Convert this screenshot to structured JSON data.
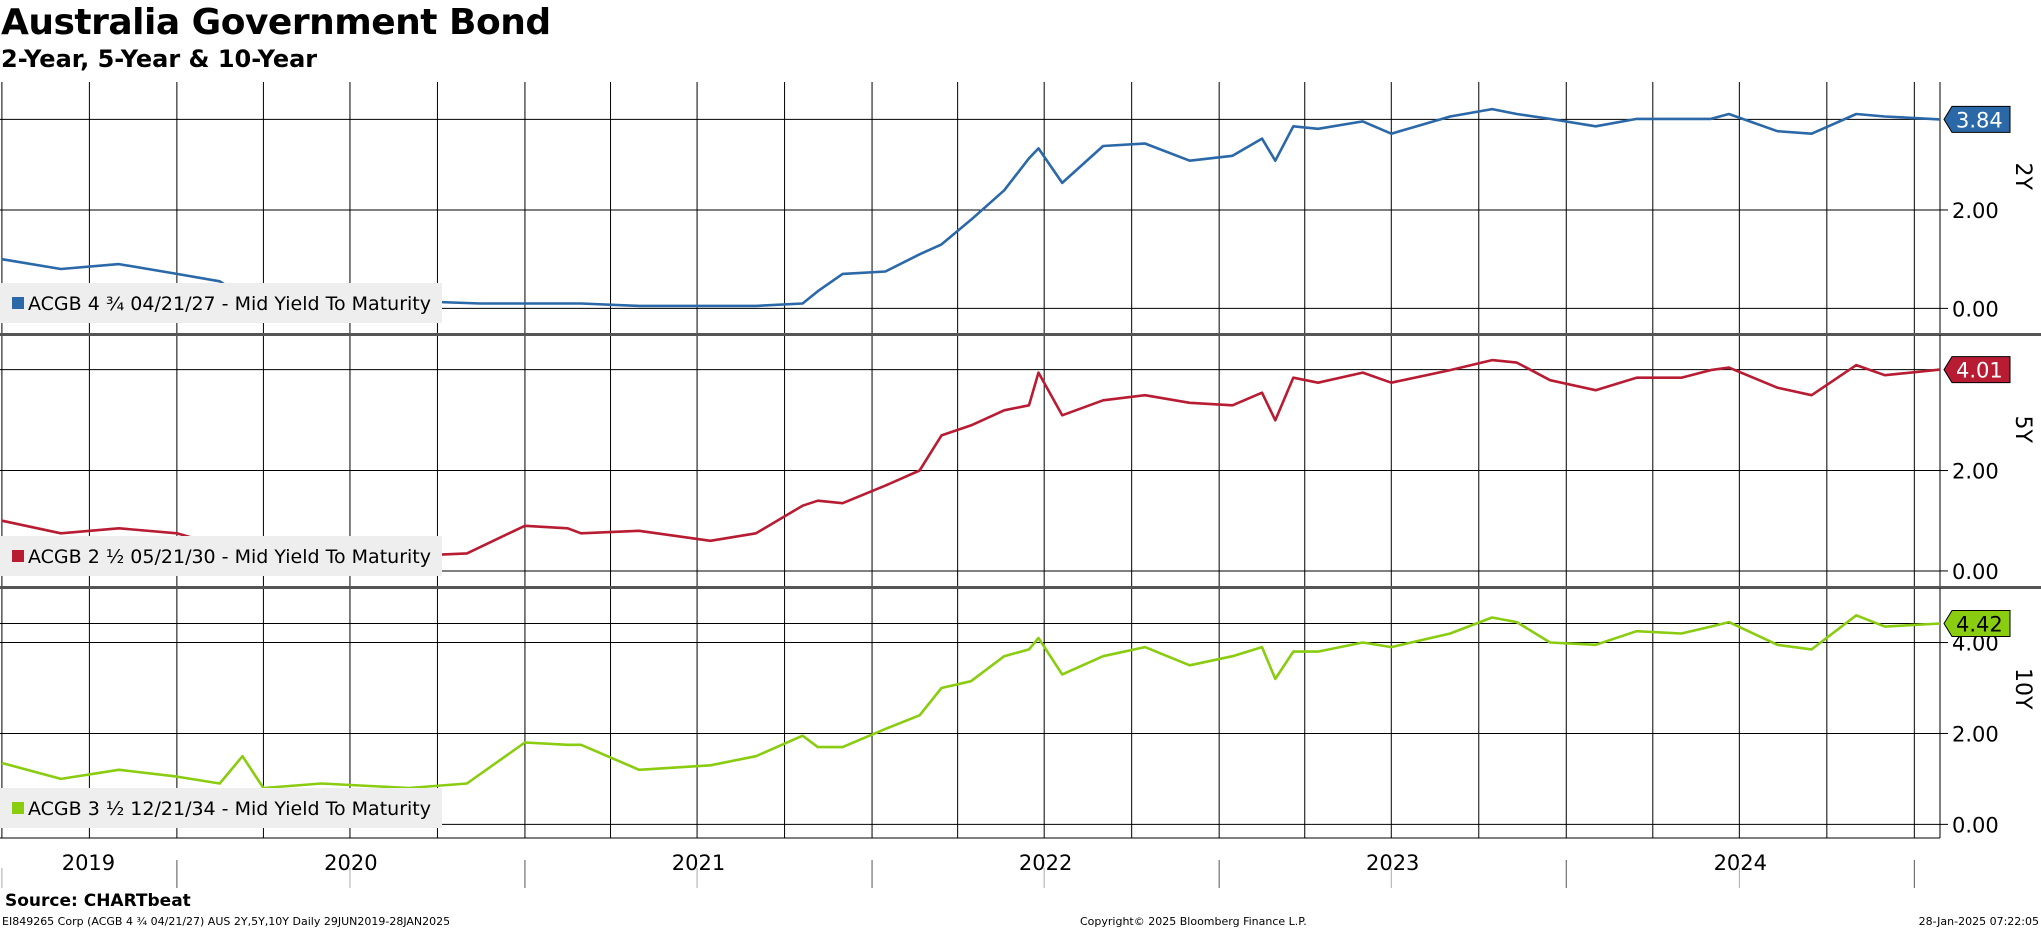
{
  "chart_data": {
    "type": "line",
    "title": "Australia Government Bond",
    "subtitle": "2-Year, 5-Year & 10-Year",
    "x_years": [
      "2019",
      "2020",
      "2021",
      "2022",
      "2023",
      "2024"
    ],
    "x_range": [
      "29JUN2019",
      "28JAN2025"
    ],
    "grid": true,
    "panels": [
      {
        "label": "2Y",
        "series_name": "ACGB 4 ¾ 04/21/27 - Mid Yield To Maturity",
        "color": "#2b68a8",
        "last_value": "3.84",
        "yticks": [
          "2.00",
          "0.00"
        ],
        "ylim": [
          -0.5,
          4.6
        ],
        "x": [
          "2019-07-01",
          "2019-09-01",
          "2019-11-01",
          "2020-01-01",
          "2020-02-15",
          "2020-03-10",
          "2020-04-01",
          "2020-06-01",
          "2020-09-01",
          "2020-11-15",
          "2021-01-01",
          "2021-03-01",
          "2021-05-01",
          "2021-06-15",
          "2021-07-01",
          "2021-09-01",
          "2021-10-20",
          "2021-11-05",
          "2021-12-01",
          "2022-01-15",
          "2022-02-20",
          "2022-03-15",
          "2022-04-15",
          "2022-05-20",
          "2022-06-15",
          "2022-06-25",
          "2022-07-20",
          "2022-09-01",
          "2022-10-15",
          "2022-12-01",
          "2023-01-15",
          "2023-02-15",
          "2023-03-01",
          "2023-03-20",
          "2023-04-15",
          "2023-06-01",
          "2023-07-01",
          "2023-09-01",
          "2023-10-15",
          "2023-11-10",
          "2023-12-15",
          "2024-02-01",
          "2024-03-15",
          "2024-05-01",
          "2024-06-01",
          "2024-06-20",
          "2024-08-10",
          "2024-09-15",
          "2024-11-01",
          "2024-12-01",
          "2025-01-28"
        ],
        "values": [
          1.0,
          0.8,
          0.9,
          0.7,
          0.55,
          0.25,
          0.25,
          0.25,
          0.15,
          0.1,
          0.1,
          0.1,
          0.05,
          0.05,
          0.05,
          0.05,
          0.1,
          0.35,
          0.7,
          0.75,
          1.1,
          1.3,
          1.8,
          2.4,
          3.05,
          3.25,
          2.55,
          3.3,
          3.35,
          3.0,
          3.1,
          3.45,
          3.0,
          3.7,
          3.65,
          3.8,
          3.55,
          3.9,
          4.05,
          3.95,
          3.85,
          3.7,
          3.85,
          3.85,
          3.85,
          3.95,
          3.6,
          3.55,
          3.95,
          3.9,
          3.84
        ]
      },
      {
        "label": "5Y",
        "series_name": "ACGB 2 ½ 05/21/30 - Mid Yield To Maturity",
        "color": "#b81c33",
        "last_value": "4.01",
        "yticks": [
          "2.00",
          "0.00"
        ],
        "ylim": [
          -0.3,
          4.7
        ],
        "x": [
          "2019-07-01",
          "2019-09-01",
          "2019-11-01",
          "2020-01-01",
          "2020-02-15",
          "2020-03-10",
          "2020-04-01",
          "2020-06-01",
          "2020-09-01",
          "2020-11-01",
          "2021-01-01",
          "2021-02-15",
          "2021-03-01",
          "2021-05-01",
          "2021-07-15",
          "2021-09-01",
          "2021-10-20",
          "2021-11-05",
          "2021-12-01",
          "2022-01-15",
          "2022-02-20",
          "2022-03-15",
          "2022-04-15",
          "2022-05-20",
          "2022-06-15",
          "2022-06-25",
          "2022-07-20",
          "2022-09-01",
          "2022-10-15",
          "2022-12-01",
          "2023-01-15",
          "2023-02-15",
          "2023-03-01",
          "2023-03-20",
          "2023-04-15",
          "2023-06-01",
          "2023-07-01",
          "2023-09-01",
          "2023-10-15",
          "2023-11-10",
          "2023-12-15",
          "2024-02-01",
          "2024-03-15",
          "2024-05-01",
          "2024-06-01",
          "2024-06-20",
          "2024-08-10",
          "2024-09-15",
          "2024-11-01",
          "2024-12-01",
          "2025-01-28"
        ],
        "values": [
          1.0,
          0.75,
          0.85,
          0.75,
          0.5,
          0.35,
          0.4,
          0.4,
          0.3,
          0.35,
          0.9,
          0.85,
          0.75,
          0.8,
          0.6,
          0.75,
          1.3,
          1.4,
          1.35,
          1.7,
          2.0,
          2.7,
          2.9,
          3.2,
          3.3,
          3.95,
          3.1,
          3.4,
          3.5,
          3.35,
          3.3,
          3.55,
          3.0,
          3.85,
          3.75,
          3.95,
          3.75,
          4.0,
          4.2,
          4.15,
          3.8,
          3.6,
          3.85,
          3.85,
          4.0,
          4.05,
          3.65,
          3.5,
          4.1,
          3.9,
          4.01
        ]
      },
      {
        "label": "10Y",
        "series_name": "ACGB 3 ½ 12/21/34 - Mid Yield To Maturity",
        "color": "#8acc10",
        "last_value": "4.42",
        "yticks": [
          "4.00",
          "2.00",
          "0.00"
        ],
        "ylim": [
          -0.3,
          5.2
        ],
        "x": [
          "2019-07-01",
          "2019-09-01",
          "2019-11-01",
          "2020-01-01",
          "2020-02-15",
          "2020-03-10",
          "2020-04-01",
          "2020-06-01",
          "2020-09-01",
          "2020-11-01",
          "2021-01-01",
          "2021-02-15",
          "2021-03-01",
          "2021-05-01",
          "2021-07-15",
          "2021-09-01",
          "2021-10-20",
          "2021-11-05",
          "2021-12-01",
          "2022-01-15",
          "2022-02-20",
          "2022-03-15",
          "2022-04-15",
          "2022-05-20",
          "2022-06-15",
          "2022-06-25",
          "2022-07-20",
          "2022-09-01",
          "2022-10-15",
          "2022-12-01",
          "2023-01-15",
          "2023-02-15",
          "2023-03-01",
          "2023-03-20",
          "2023-04-15",
          "2023-06-01",
          "2023-07-01",
          "2023-09-01",
          "2023-10-15",
          "2023-11-10",
          "2023-12-15",
          "2024-02-01",
          "2024-03-15",
          "2024-05-01",
          "2024-06-01",
          "2024-06-20",
          "2024-08-10",
          "2024-09-15",
          "2024-11-01",
          "2024-12-01",
          "2025-01-28"
        ],
        "values": [
          1.35,
          1.0,
          1.2,
          1.05,
          0.9,
          1.5,
          0.8,
          0.9,
          0.8,
          0.9,
          1.8,
          1.75,
          1.75,
          1.2,
          1.3,
          1.5,
          1.95,
          1.7,
          1.7,
          2.1,
          2.4,
          3.0,
          3.15,
          3.7,
          3.85,
          4.1,
          3.3,
          3.7,
          3.9,
          3.5,
          3.7,
          3.9,
          3.2,
          3.8,
          3.8,
          4.0,
          3.9,
          4.2,
          4.55,
          4.45,
          4.0,
          3.95,
          4.25,
          4.2,
          4.35,
          4.45,
          3.95,
          3.85,
          4.6,
          4.35,
          4.42
        ]
      }
    ]
  },
  "source": "Source: CHARTbeat",
  "footer": {
    "left": "EI849265 Corp (ACGB 4 ¾ 04/21/27) AUS 2Y,5Y,10Y  Daily 29JUN2019-28JAN2025",
    "center": "Copyright© 2025 Bloomberg Finance L.P.",
    "right": "28-Jan-2025 07:22:05"
  }
}
